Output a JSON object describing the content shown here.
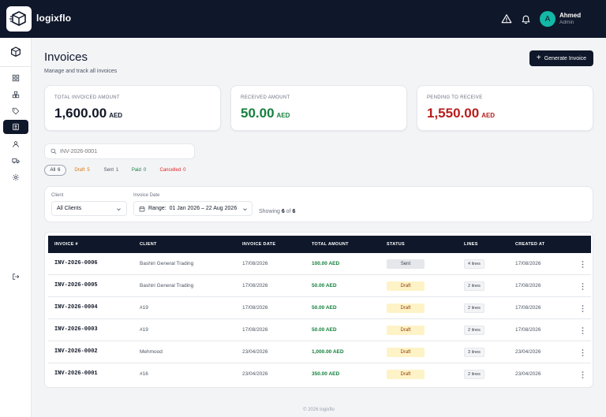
{
  "header": {
    "brand": "logixflo",
    "user_name": "Ahmed",
    "user_role": "Admin",
    "avatar_initial": "A"
  },
  "page": {
    "title": "Invoices",
    "subtitle": "Manage and track all invoices",
    "generate_label": "Generate Invoice"
  },
  "cards": [
    {
      "label": "TOTAL INVOICED AMOUNT",
      "value": "1,600.00",
      "currency": "AED",
      "color": "#111827"
    },
    {
      "label": "RECEIVED AMOUNT",
      "value": "50.00",
      "currency": "AED",
      "color": "#15803d"
    },
    {
      "label": "PENDING TO RECEIVE",
      "value": "1,550.00",
      "currency": "AED",
      "color": "#b91c1c"
    }
  ],
  "search": {
    "placeholder": "INV-2026-0001"
  },
  "chips": [
    {
      "label": "All",
      "count": "6",
      "color": "#374151"
    },
    {
      "label": "Draft",
      "count": "5",
      "color": "#d97706"
    },
    {
      "label": "Sent",
      "count": "1",
      "color": "#4b5563"
    },
    {
      "label": "Paid",
      "count": "0",
      "color": "#15803d"
    },
    {
      "label": "Cancelled",
      "count": "0",
      "color": "#dc2626"
    }
  ],
  "filters": {
    "client_label": "Client",
    "client_value": "All Clients",
    "date_label": "Invoice Date",
    "range_prefix": "Range:",
    "range_value": "01 Jan 2026 – 22 Aug 2026",
    "showing_prefix": "Showing",
    "showing_count": "6",
    "showing_of": "of",
    "showing_total": "6"
  },
  "table": {
    "columns": [
      "INVOICE #",
      "CLIENT",
      "INVOICE DATE",
      "TOTAL AMOUNT",
      "STATUS",
      "LINES",
      "CREATED AT"
    ],
    "rows": [
      {
        "invoice": "INV-2026-0006",
        "client": "Bashiri General Trading",
        "date": "17/08/2026",
        "amount": "100.00 AED",
        "status": "Sent",
        "lines": "4 lines",
        "created": "17/08/2026"
      },
      {
        "invoice": "INV-2026-0005",
        "client": "Bashiri General Trading",
        "date": "17/08/2026",
        "amount": "50.00 AED",
        "status": "Draft",
        "lines": "2 lines",
        "created": "17/08/2026"
      },
      {
        "invoice": "INV-2026-0004",
        "client": "#19",
        "date": "17/08/2026",
        "amount": "50.00 AED",
        "status": "Draft",
        "lines": "2 lines",
        "created": "17/08/2026"
      },
      {
        "invoice": "INV-2026-0003",
        "client": "#19",
        "date": "17/08/2026",
        "amount": "50.00 AED",
        "status": "Draft",
        "lines": "2 lines",
        "created": "17/08/2026"
      },
      {
        "invoice": "INV-2026-0002",
        "client": "Mehmood",
        "date": "23/04/2026",
        "amount": "1,000.00 AED",
        "status": "Draft",
        "lines": "3 lines",
        "created": "23/04/2026"
      },
      {
        "invoice": "INV-2026-0001",
        "client": "#16",
        "date": "23/04/2026",
        "amount": "350.00 AED",
        "status": "Draft",
        "lines": "2 lines",
        "created": "23/04/2026"
      }
    ]
  },
  "footer": {
    "text": "© 2026 logixflo"
  }
}
